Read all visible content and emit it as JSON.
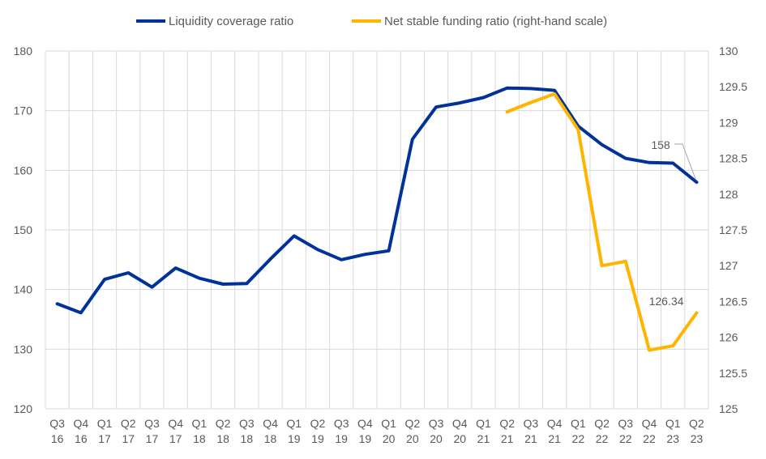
{
  "chart_data": {
    "type": "line",
    "categories": [
      [
        "Q3",
        "16"
      ],
      [
        "Q4",
        "16"
      ],
      [
        "Q1",
        "17"
      ],
      [
        "Q2",
        "17"
      ],
      [
        "Q3",
        "17"
      ],
      [
        "Q4",
        "17"
      ],
      [
        "Q1",
        "18"
      ],
      [
        "Q2",
        "18"
      ],
      [
        "Q3",
        "18"
      ],
      [
        "Q4",
        "18"
      ],
      [
        "Q1",
        "19"
      ],
      [
        "Q2",
        "19"
      ],
      [
        "Q3",
        "19"
      ],
      [
        "Q4",
        "19"
      ],
      [
        "Q1",
        "20"
      ],
      [
        "Q2",
        "20"
      ],
      [
        "Q3",
        "20"
      ],
      [
        "Q4",
        "20"
      ],
      [
        "Q1",
        "21"
      ],
      [
        "Q2",
        "21"
      ],
      [
        "Q3",
        "21"
      ],
      [
        "Q4",
        "21"
      ],
      [
        "Q1",
        "22"
      ],
      [
        "Q2",
        "22"
      ],
      [
        "Q3",
        "22"
      ],
      [
        "Q4",
        "22"
      ],
      [
        "Q1",
        "23"
      ],
      [
        "Q2",
        "23"
      ]
    ],
    "series": [
      {
        "name": "Liquidity coverage ratio",
        "axis": "left",
        "color": "#003299",
        "values": [
          137.6,
          136.1,
          141.7,
          142.8,
          140.4,
          143.6,
          141.9,
          140.9,
          141.0,
          145.1,
          149.0,
          146.7,
          145.0,
          145.9,
          146.5,
          165.2,
          170.6,
          171.3,
          172.2,
          173.8,
          173.7,
          173.4,
          167.4,
          164.3,
          162.0,
          161.3,
          161.2,
          158.0
        ],
        "end_label": "158"
      },
      {
        "name": "Net stable funding ratio (right-hand scale)",
        "axis": "right",
        "color": "#FFB400",
        "values": [
          null,
          null,
          null,
          null,
          null,
          null,
          null,
          null,
          null,
          null,
          null,
          null,
          null,
          null,
          null,
          null,
          null,
          null,
          null,
          129.15,
          129.28,
          129.4,
          128.9,
          127.0,
          127.06,
          125.82,
          125.88,
          126.34
        ],
        "end_label": "126.34"
      }
    ],
    "y_left": {
      "min": 120,
      "max": 180,
      "ticks": [
        "120",
        "130",
        "140",
        "150",
        "160",
        "170",
        "180"
      ]
    },
    "y_right": {
      "min": 125,
      "max": 130,
      "ticks": [
        "125",
        "125.5",
        "126",
        "126.5",
        "127",
        "127.5",
        "128",
        "128.5",
        "129",
        "129.5",
        "130"
      ]
    },
    "grid": true,
    "legend_position": "top"
  }
}
